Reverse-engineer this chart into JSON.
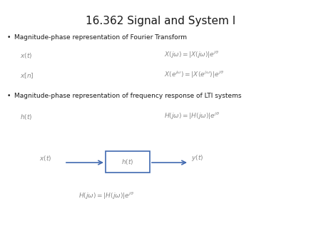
{
  "title": "16.362 Signal and System I",
  "title_fontsize": 11,
  "background_color": "#ffffff",
  "text_color": "#1a1a1a",
  "bullet1": "Magnitude-phase representation of Fourier Transform",
  "bullet2": "Magnitude-phase representation of frequency response of LTI systems",
  "bullet_fontsize": 6.5,
  "math_fontsize": 6.5,
  "math_color": "#888888",
  "box_color": "#4169b0",
  "arrow_color": "#4169b0",
  "label_color": "#888888"
}
